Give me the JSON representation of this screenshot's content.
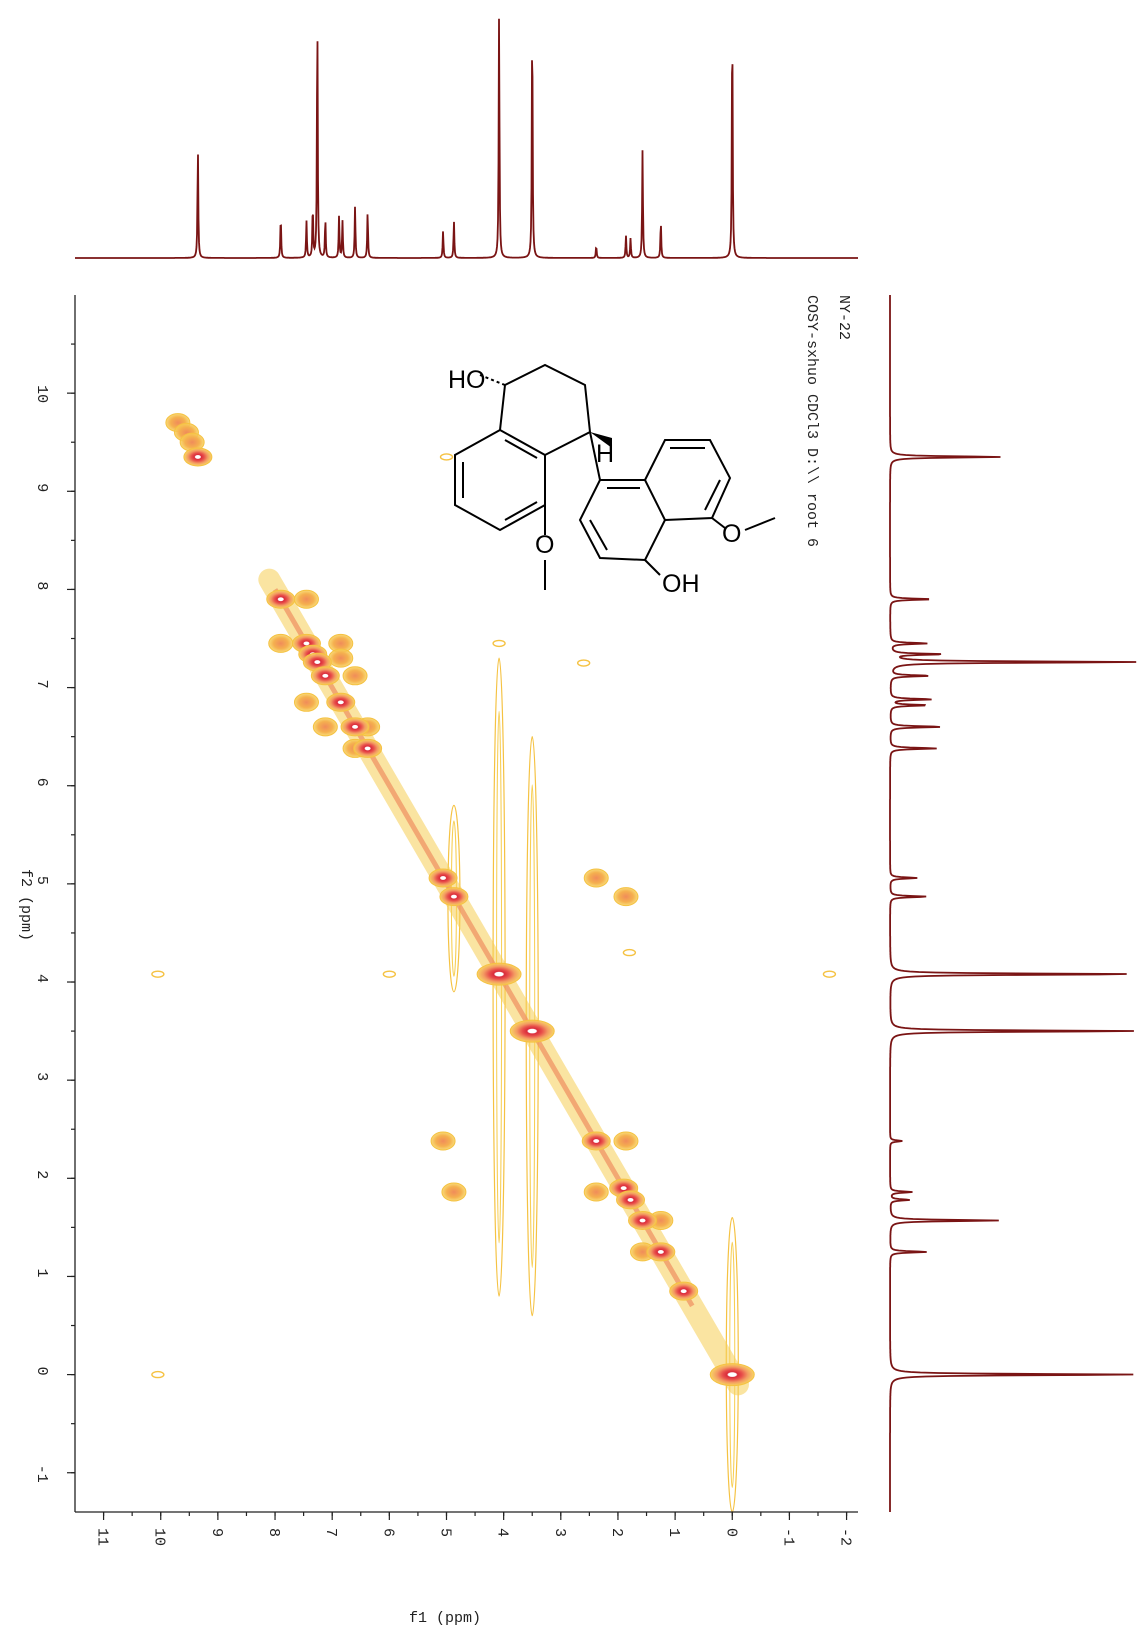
{
  "chart_data": {
    "type": "scatter",
    "subtype": "2D COSY NMR contour plot",
    "sample_label": "NY-22",
    "experiment_label": "COSY-sxhuo CDCl3 D:\\\\ root 6",
    "xlabel": "f1 (ppm)",
    "ylabel": "f2 (ppm)",
    "xlim": [
      11.5,
      -2.2
    ],
    "ylim": [
      11.0,
      -1.4
    ],
    "x_ticks": [
      "11",
      "10",
      "9",
      "8",
      "7",
      "6",
      "5",
      "4",
      "3",
      "2",
      "1",
      "0",
      "-1",
      "-2"
    ],
    "y_ticks": [
      "10",
      "9",
      "8",
      "7",
      "6",
      "5",
      "4",
      "3",
      "2",
      "1",
      "0",
      "-1"
    ],
    "colors": {
      "spectrum": "#7a1414",
      "contour_outer": "#f5c242",
      "contour_mid": "#f08c5a",
      "contour_core": "#d92b3a"
    },
    "projection_peaks": [
      {
        "ppm": 9.35,
        "height": 0.45
      },
      {
        "ppm": 7.9,
        "height": 0.17
      },
      {
        "ppm": 7.45,
        "height": 0.15
      },
      {
        "ppm": 7.34,
        "height": 0.21
      },
      {
        "ppm": 7.26,
        "height": 1.0
      },
      {
        "ppm": 7.12,
        "height": 0.16
      },
      {
        "ppm": 6.88,
        "height": 0.17
      },
      {
        "ppm": 6.82,
        "height": 0.15
      },
      {
        "ppm": 6.6,
        "height": 0.21
      },
      {
        "ppm": 6.38,
        "height": 0.19
      },
      {
        "ppm": 5.06,
        "height": 0.11
      },
      {
        "ppm": 4.87,
        "height": 0.15
      },
      {
        "ppm": 4.08,
        "height": 1.0
      },
      {
        "ppm": 3.5,
        "height": 1.0
      },
      {
        "ppm": 2.38,
        "height": 0.05
      },
      {
        "ppm": 1.86,
        "height": 0.09
      },
      {
        "ppm": 1.78,
        "height": 0.08
      },
      {
        "ppm": 1.57,
        "height": 0.44
      },
      {
        "ppm": 1.25,
        "height": 0.15
      },
      {
        "ppm": 0.0,
        "height": 1.0
      }
    ],
    "diagonal_peaks": [
      9.35,
      7.9,
      7.45,
      7.34,
      7.26,
      7.12,
      6.85,
      6.6,
      6.38,
      5.06,
      4.87,
      4.08,
      3.5,
      2.38,
      1.9,
      1.78,
      1.57,
      1.25,
      0.85,
      0.0
    ],
    "cross_peaks": [
      {
        "f1": 9.7,
        "f2": 9.7
      },
      {
        "f1": 9.55,
        "f2": 9.6
      },
      {
        "f1": 9.45,
        "f2": 9.5
      },
      {
        "f1": 7.45,
        "f2": 7.9
      },
      {
        "f1": 7.9,
        "f2": 7.45
      },
      {
        "f1": 6.85,
        "f2": 7.45
      },
      {
        "f1": 7.45,
        "f2": 6.85
      },
      {
        "f1": 7.12,
        "f2": 6.6
      },
      {
        "f1": 6.6,
        "f2": 7.12
      },
      {
        "f1": 6.38,
        "f2": 6.6
      },
      {
        "f1": 6.6,
        "f2": 6.38
      },
      {
        "f1": 6.85,
        "f2": 7.3
      },
      {
        "f1": 5.06,
        "f2": 2.38
      },
      {
        "f1": 2.38,
        "f2": 5.06
      },
      {
        "f1": 4.87,
        "f2": 1.86
      },
      {
        "f1": 1.86,
        "f2": 4.87
      },
      {
        "f1": 2.38,
        "f2": 1.86
      },
      {
        "f1": 1.86,
        "f2": 2.38
      },
      {
        "f1": 1.57,
        "f2": 1.25
      },
      {
        "f1": 1.25,
        "f2": 1.57
      }
    ],
    "weak_features": [
      {
        "f1": 10.05,
        "f2": 0.0
      },
      {
        "f1": 10.05,
        "f2": 4.08
      },
      {
        "f1": 6.0,
        "f2": 4.08
      },
      {
        "f1": -1.7,
        "f2": 4.08
      },
      {
        "f1": 4.08,
        "f2": 7.45
      },
      {
        "f1": 2.6,
        "f2": 7.25
      },
      {
        "f1": 5.0,
        "f2": 9.35
      },
      {
        "f1": 1.8,
        "f2": 4.3
      }
    ]
  },
  "structure": {
    "labels": [
      "HO",
      "H",
      "O",
      "O",
      "OH"
    ]
  }
}
